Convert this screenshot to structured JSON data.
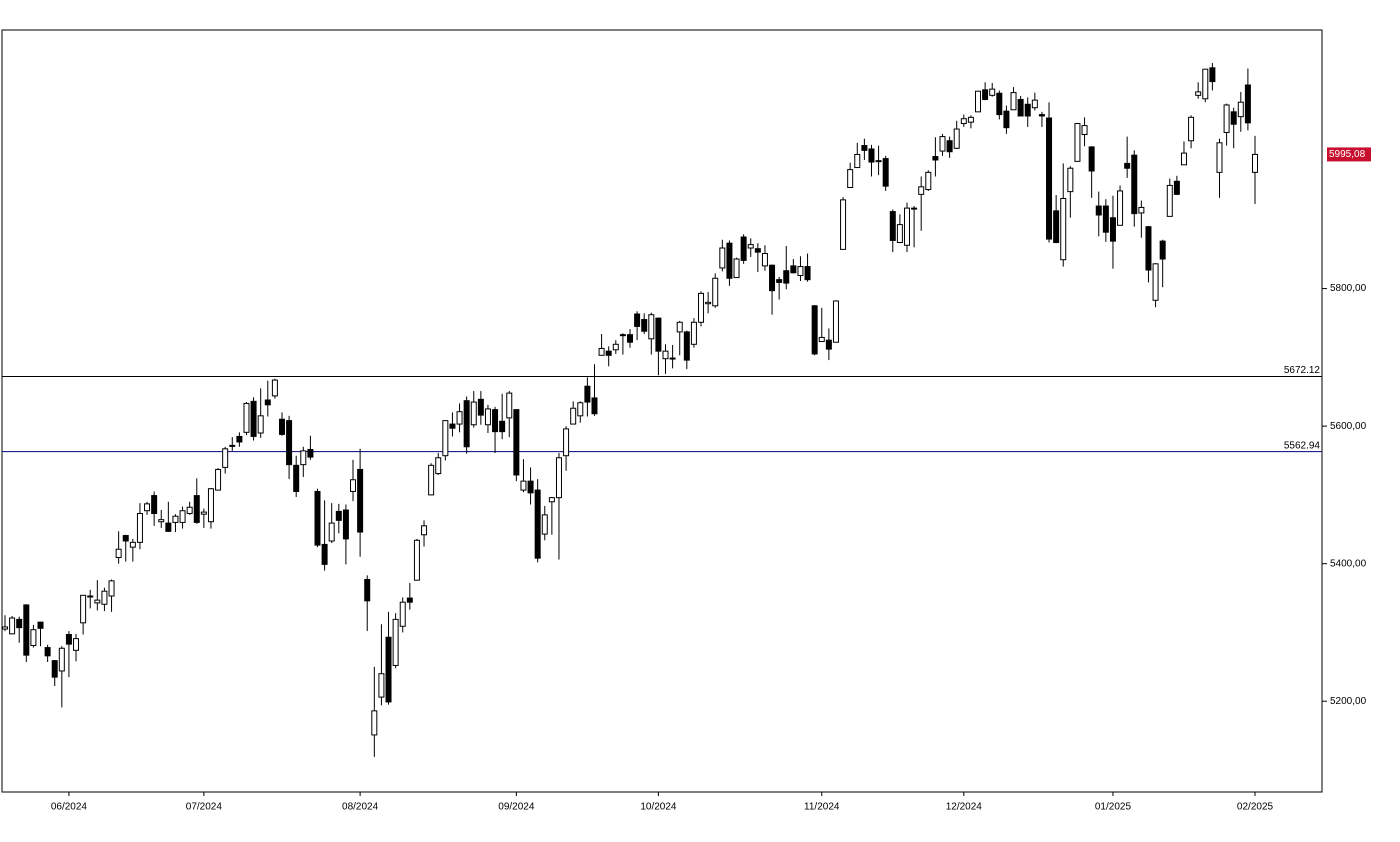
{
  "chart_data": {
    "type": "candlestick",
    "categories": [
      null,
      null,
      null,
      null,
      null,
      null,
      null,
      null,
      null,
      "06/2024",
      null,
      null,
      null,
      null,
      null,
      null,
      null,
      null,
      null,
      null,
      null,
      null,
      null,
      null,
      null,
      null,
      null,
      null,
      "07/2024",
      null,
      null,
      null,
      null,
      null,
      null,
      null,
      null,
      null,
      null,
      null,
      null,
      null,
      null,
      null,
      null,
      null,
      null,
      null,
      null,
      null,
      "08/2024",
      null,
      null,
      null,
      null,
      null,
      null,
      null,
      null,
      null,
      null,
      null,
      null,
      null,
      null,
      null,
      null,
      null,
      null,
      null,
      null,
      null,
      "09/2024",
      null,
      null,
      null,
      null,
      null,
      null,
      null,
      null,
      null,
      null,
      null,
      null,
      null,
      null,
      null,
      null,
      null,
      null,
      null,
      "10/2024",
      null,
      null,
      null,
      null,
      null,
      null,
      null,
      null,
      null,
      null,
      null,
      null,
      null,
      null,
      null,
      null,
      null,
      null,
      null,
      null,
      null,
      null,
      "11/2024",
      null,
      null,
      null,
      null,
      null,
      null,
      null,
      null,
      null,
      null,
      null,
      null,
      null,
      null,
      null,
      null,
      null,
      null,
      null,
      "12/2024",
      null,
      null,
      null,
      null,
      null,
      null,
      null,
      null,
      null,
      null,
      null,
      null,
      null,
      null,
      null,
      null,
      null,
      null,
      null,
      null,
      "01/2025",
      null,
      null,
      null,
      null,
      null,
      null,
      null,
      null,
      null,
      null,
      null,
      null,
      null,
      null,
      null,
      null,
      null,
      null,
      null,
      "02/2025"
    ],
    "open": [
      5305,
      5298,
      5319,
      5340,
      5281,
      5315,
      5278,
      5259,
      5244,
      5297,
      5274,
      5314,
      5353,
      5343,
      5341,
      5353,
      5409,
      5441,
      5424,
      5431,
      5477,
      5499,
      5461,
      5459,
      5460,
      5460,
      5473,
      5499,
      5472,
      5461,
      5507,
      5540,
      5572,
      5585,
      5591,
      5636,
      5590,
      5638,
      5644,
      5610,
      5608,
      5543,
      5544,
      5566,
      5505,
      5428,
      5433,
      5476,
      5478,
      5505,
      5537,
      5377,
      5151,
      5206,
      5293,
      5252,
      5309,
      5350,
      5376,
      5442,
      5500,
      5531,
      5557,
      5603,
      5603,
      5637,
      5602,
      5639,
      5602,
      5624,
      5607,
      5612,
      5624,
      5507,
      5520,
      5507,
      5443,
      5490,
      5496,
      5557,
      5603,
      5615,
      5658,
      5641,
      5703,
      5709,
      5711,
      5733,
      5733,
      5763,
      5755,
      5727,
      5757,
      5698,
      5698,
      5737,
      5737,
      5719,
      5751,
      5778,
      5775,
      5830,
      5866,
      5816,
      5875,
      5859,
      5858,
      5833,
      5834,
      5813,
      5826,
      5833,
      5819,
      5832,
      5775,
      5723,
      5725,
      5722,
      5857,
      5947,
      5976,
      6008,
      6003,
      5986,
      5989,
      5912,
      5867,
      5863,
      5917,
      5937,
      5944,
      5992,
      6000,
      6015,
      6004,
      6040,
      6042,
      6057,
      6089,
      6081,
      6084,
      6058,
      6060,
      6075,
      6068,
      6063,
      6053,
      6048,
      5913,
      5842,
      5941,
      5985,
      6024,
      6006,
      5920,
      5920,
      5903,
      5892,
      5982,
      5994,
      5910,
      5890,
      5783,
      5869,
      5905,
      5956,
      5980,
      6015,
      6081,
      6076,
      6121,
      5969,
      6027,
      6057,
      6050,
      6096,
      5969
    ],
    "high": [
      5325,
      5324,
      5323,
      5341,
      5311,
      5315,
      5282,
      5260,
      5280,
      5302,
      5298,
      5354,
      5362,
      5376,
      5365,
      5377,
      5447,
      5442,
      5436,
      5488,
      5490,
      5505,
      5478,
      5490,
      5472,
      5483,
      5490,
      5524,
      5480,
      5510,
      5539,
      5570,
      5584,
      5591,
      5635,
      5642,
      5655,
      5666,
      5669,
      5620,
      5615,
      5557,
      5570,
      5586,
      5509,
      5492,
      5488,
      5487,
      5486,
      5551,
      5567,
      5383,
      5250,
      5312,
      5330,
      5328,
      5351,
      5372,
      5436,
      5463,
      5546,
      5561,
      5608,
      5620,
      5633,
      5643,
      5651,
      5651,
      5631,
      5628,
      5647,
      5651,
      5624,
      5552,
      5540,
      5523,
      5484,
      5497,
      5561,
      5600,
      5636,
      5636,
      5671,
      5690,
      5734,
      5716,
      5725,
      5735,
      5741,
      5767,
      5764,
      5765,
      5758,
      5719,
      5718,
      5753,
      5739,
      5757,
      5796,
      5795,
      5822,
      5871,
      5870,
      5845,
      5879,
      5873,
      5866,
      5863,
      5835,
      5817,
      5862,
      5843,
      5847,
      5851,
      5776,
      5772,
      5742,
      5783,
      5933,
      5983,
      6012,
      6018,
      6009,
      6008,
      5993,
      5915,
      5908,
      5925,
      5920,
      5963,
      5972,
      6020,
      6025,
      6021,
      6044,
      6053,
      6052,
      6087,
      6100,
      6099,
      6088,
      6066,
      6093,
      6080,
      6078,
      6085,
      6057,
      6071,
      5936,
      5982,
      5978,
      6041,
      6049,
      6007,
      5941,
      5930,
      5935,
      5950,
      6021,
      6001,
      5928,
      5891,
      5837,
      5871,
      5960,
      5964,
      6014,
      6052,
      6100,
      6119,
      6128,
      6018,
      6069,
      6063,
      6086,
      6120,
      6022
    ],
    "low": [
      5302,
      5297,
      5285,
      5257,
      5278,
      5280,
      5257,
      5222,
      5191,
      5235,
      5258,
      5297,
      5335,
      5332,
      5331,
      5330,
      5400,
      5403,
      5403,
      5421,
      5471,
      5455,
      5452,
      5446,
      5446,
      5451,
      5471,
      5458,
      5452,
      5451,
      5507,
      5531,
      5564,
      5570,
      5587,
      5579,
      5583,
      5614,
      5640,
      5586,
      5523,
      5497,
      5526,
      5551,
      5424,
      5390,
      5430,
      5444,
      5399,
      5491,
      5410,
      5302,
      5119,
      5194,
      5195,
      5248,
      5300,
      5333,
      5376,
      5425,
      5500,
      5529,
      5550,
      5585,
      5591,
      5560,
      5598,
      5602,
      5590,
      5561,
      5581,
      5584,
      5520,
      5504,
      5486,
      5402,
      5434,
      5442,
      5406,
      5535,
      5603,
      5605,
      5614,
      5615,
      5703,
      5687,
      5705,
      5704,
      5714,
      5725,
      5734,
      5704,
      5674,
      5676,
      5684,
      5703,
      5683,
      5714,
      5745,
      5764,
      5772,
      5825,
      5804,
      5816,
      5836,
      5846,
      5824,
      5826,
      5762,
      5784,
      5799,
      5822,
      5811,
      5810,
      5703,
      5723,
      5696,
      5722,
      5857,
      5947,
      5976,
      5987,
      5963,
      5965,
      5942,
      5853,
      5866,
      5853,
      5860,
      5884,
      5942,
      5963,
      5993,
      5990,
      6003,
      6035,
      6033,
      6057,
      6074,
      6079,
      6046,
      6025,
      6060,
      6051,
      6035,
      6059,
      6035,
      5867,
      5866,
      5832,
      5903,
      5985,
      6007,
      5932,
      5876,
      5868,
      5829,
      5892,
      5961,
      5890,
      5874,
      5809,
      5773,
      5802,
      5905,
      5936,
      5980,
      6004,
      6076,
      6071,
      6088,
      5932,
      6008,
      6004,
      6028,
      6030,
      5923
    ],
    "close": [
      5308,
      5321,
      5307,
      5267,
      5304,
      5306,
      5266,
      5235,
      5277,
      5283,
      5291,
      5354,
      5352,
      5347,
      5360,
      5375,
      5421,
      5433,
      5431,
      5473,
      5487,
      5473,
      5464,
      5447,
      5469,
      5477,
      5482,
      5460,
      5475,
      5509,
      5537,
      5567,
      5572,
      5577,
      5633,
      5585,
      5615,
      5631,
      5667,
      5588,
      5544,
      5505,
      5564,
      5555,
      5427,
      5399,
      5459,
      5463,
      5436,
      5522,
      5446,
      5346,
      5186,
      5240,
      5199,
      5319,
      5344,
      5344,
      5434,
      5455,
      5543,
      5554,
      5608,
      5597,
      5621,
      5570,
      5635,
      5616,
      5625,
      5592,
      5592,
      5648,
      5529,
      5520,
      5503,
      5408,
      5471,
      5496,
      5554,
      5596,
      5626,
      5634,
      5635,
      5618,
      5713,
      5703,
      5719,
      5732,
      5722,
      5745,
      5738,
      5762,
      5709,
      5709,
      5699,
      5751,
      5696,
      5751,
      5793,
      5780,
      5815,
      5859,
      5815,
      5843,
      5841,
      5864,
      5853,
      5851,
      5797,
      5809,
      5808,
      5823,
      5832,
      5813,
      5705,
      5729,
      5712,
      5782,
      5929,
      5973,
      5995,
      6001,
      5984,
      5985,
      5949,
      5870,
      5893,
      5917,
      5917,
      5948,
      5969,
      5987,
      6021,
      5999,
      6032,
      6047,
      6049,
      6087,
      6075,
      6090,
      6053,
      6034,
      6085,
      6051,
      6051,
      6074,
      6051,
      5872,
      5867,
      5931,
      5975,
      6040,
      6037,
      5971,
      5907,
      5882,
      5869,
      5942,
      5975,
      5909,
      5918,
      5827,
      5836,
      5843,
      5950,
      5937,
      5997,
      6049,
      6086,
      6119,
      6101,
      6012,
      6067,
      6039,
      6071,
      6041,
      5995.08
    ],
    "up_color": "#ffffff",
    "down_color": "#000000",
    "ylim": [
      5068,
      6176
    ],
    "yticks": [
      {
        "value": 5200,
        "label": "5200,00"
      },
      {
        "value": 5400,
        "label": "5400,00"
      },
      {
        "value": 5600,
        "label": "5600,00"
      },
      {
        "value": 5800,
        "label": "5800,00"
      }
    ],
    "levels": [
      {
        "value": 5672.12,
        "label": "5672.12",
        "color": "#000000"
      },
      {
        "value": 5562.94,
        "label": "5562.94",
        "color": "#000080"
      }
    ],
    "last_price": {
      "value": 5995.08,
      "label": "5995,08",
      "color": "#c8102e"
    }
  }
}
